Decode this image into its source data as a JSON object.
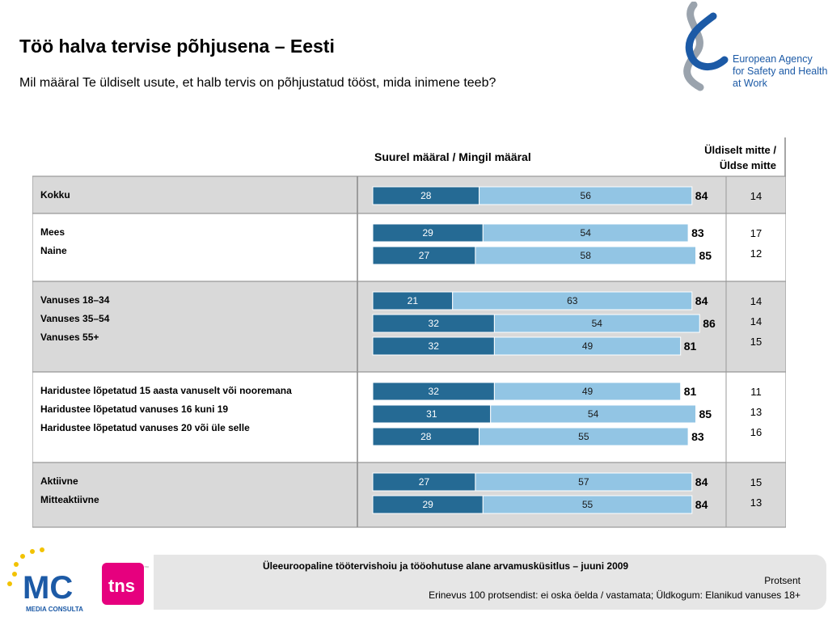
{
  "title": "Töö halva tervise põhjusena – Eesti",
  "subtitle": "Mil määral Te üldiselt usute, et halb tervis on põhjustatud tööst, mida inimene teeb?",
  "logo": {
    "lines": [
      "European Agency",
      "for Safety and Health",
      "at Work"
    ],
    "color": "#1c5aa6"
  },
  "chart_data": {
    "type": "bar",
    "stacked": true,
    "orientation": "horizontal",
    "column_headers": {
      "main": "Suurel määral / Mingil määral",
      "side_line1": "Üldiselt mitte /",
      "side_line2": "Üldse mitte"
    },
    "series_colors": [
      "#256a94",
      "#92c5e4"
    ],
    "xlim": [
      0,
      100
    ],
    "groups": [
      {
        "rows": [
          {
            "label": "Kokku",
            "values": [
              28,
              56
            ],
            "total": 84,
            "other": 14
          }
        ]
      },
      {
        "rows": [
          {
            "label": "Mees",
            "values": [
              29,
              54
            ],
            "total": 83,
            "other": 17
          },
          {
            "label": "Naine",
            "values": [
              27,
              58
            ],
            "total": 85,
            "other": 12
          }
        ]
      },
      {
        "rows": [
          {
            "label": "Vanuses 18–34",
            "values": [
              21,
              63
            ],
            "total": 84,
            "other": 14
          },
          {
            "label": "Vanuses 35–54",
            "values": [
              32,
              54
            ],
            "total": 86,
            "other": 14
          },
          {
            "label": "Vanuses 55+",
            "values": [
              32,
              49
            ],
            "total": 81,
            "other": 15
          }
        ]
      },
      {
        "rows": [
          {
            "label": "Haridustee lõpetatud 15 aasta vanuselt või nooremana",
            "values": [
              32,
              49
            ],
            "total": 81,
            "other": 11
          },
          {
            "label": "Haridustee lõpetatud vanuses 16 kuni 19",
            "values": [
              31,
              54
            ],
            "total": 85,
            "other": 13
          },
          {
            "label": "Haridustee lõpetatud vanuses 20 või üle selle",
            "values": [
              28,
              55
            ],
            "total": 83,
            "other": 16
          }
        ]
      },
      {
        "rows": [
          {
            "label": "Aktiivne",
            "values": [
              27,
              57
            ],
            "total": 84,
            "other": 15
          },
          {
            "label": "Mitteaktiivne",
            "values": [
              29,
              55
            ],
            "total": 84,
            "other": 13
          }
        ]
      }
    ]
  },
  "footer": {
    "survey": "Üleeuroopaline töötervishoiu ja tööohutuse alane arvamusküsitlus – juuni 2009",
    "unit": "Protsent",
    "note": "Erinevus 100 protsendist: ei oska öelda / vastamata; Üldkogum: Elanikud vanuses 18+"
  },
  "partner_logos": {
    "mc_letters": "MC",
    "mc_caption": "MEDIA CONSULTA",
    "tns": "tns",
    "tns_mark": "™"
  }
}
